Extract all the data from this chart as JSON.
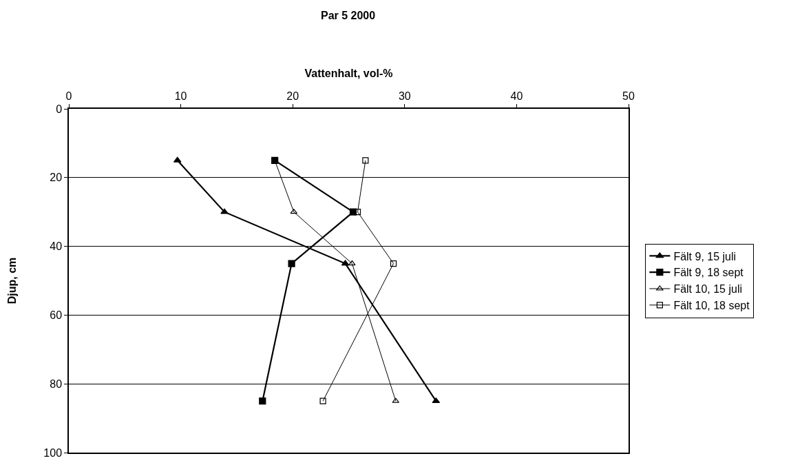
{
  "chart_data": {
    "type": "line",
    "title": "Par 5 2000",
    "xlabel": "Vattenhalt, vol-%",
    "ylabel": "Djup, cm",
    "xlim": [
      0,
      50
    ],
    "xticks": [
      0,
      10,
      20,
      30,
      40,
      50
    ],
    "ylim": [
      100,
      0
    ],
    "yticks": [
      0,
      20,
      40,
      60,
      80,
      100
    ],
    "grid": "y",
    "legend": "right",
    "line_style": "solid",
    "series": [
      {
        "name": "Fält 9, 15 juli",
        "color": "#000000",
        "marker": "triangle",
        "x": [
          9.7,
          13.9,
          24.7,
          32.8
        ],
        "values": [
          15,
          30,
          45,
          85
        ]
      },
      {
        "name": "Fält 9, 18 sept",
        "color": "#000000",
        "marker": "square",
        "x": [
          18.4,
          25.4,
          19.9,
          17.3
        ],
        "values": [
          15,
          30,
          45,
          85
        ]
      },
      {
        "name": "Fält 10, 15 juli",
        "color": "#000000",
        "marker": "triangle",
        "x": [
          18.4,
          20.1,
          25.3,
          29.2
        ],
        "values": [
          15,
          30,
          45,
          85
        ]
      },
      {
        "name": "Fält 10, 18 sept",
        "color": "#000000",
        "marker": "square",
        "x": [
          26.5,
          25.8,
          29.0,
          22.7
        ],
        "values": [
          15,
          30,
          45,
          85
        ]
      }
    ]
  }
}
